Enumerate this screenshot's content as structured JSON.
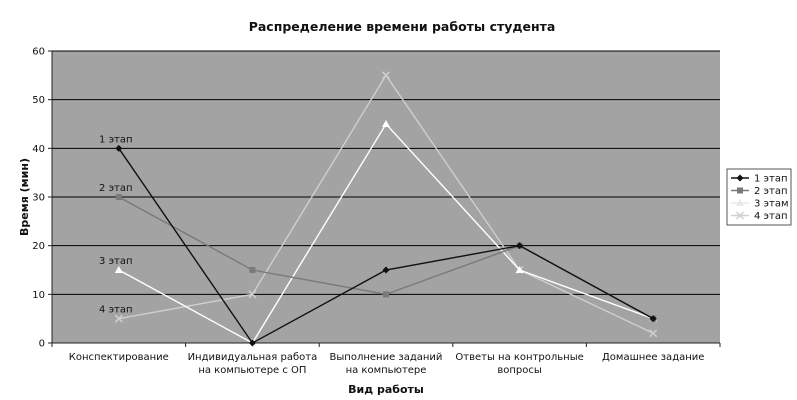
{
  "chart_data": {
    "type": "line",
    "title": "Распределение времени работы студента",
    "xlabel": "Вид работы",
    "ylabel": "Время (мин)",
    "ylim": [
      0,
      60
    ],
    "yticks": [
      0,
      10,
      20,
      30,
      40,
      50,
      60
    ],
    "grid": true,
    "legend_position": "right",
    "categories": [
      [
        "Конспектирование"
      ],
      [
        "Индивидуальная работа",
        "на компьютере с ОП"
      ],
      [
        "Выполнение заданий",
        "на компьютере"
      ],
      [
        "Ответы на контрольные",
        "вопросы"
      ],
      [
        "Домашнее задание"
      ]
    ],
    "series": [
      {
        "name": "1 этап",
        "values": [
          40,
          0,
          15,
          20,
          5
        ],
        "color": "#111111",
        "marker": "diamond"
      },
      {
        "name": "2 этап",
        "values": [
          30,
          15,
          10,
          20,
          5
        ],
        "color": "#7a7a7a",
        "marker": "square"
      },
      {
        "name": "3 этам",
        "values": [
          15,
          0,
          45,
          15,
          5
        ],
        "color": "#ffffff",
        "marker": "triangle"
      },
      {
        "name": "4 этап",
        "values": [
          5,
          10,
          55,
          15,
          2
        ],
        "color": "#cfcfcf",
        "marker": "cross"
      }
    ],
    "annotations": [
      {
        "text": "1 этап"
      },
      {
        "text": "2 этап"
      },
      {
        "text": "3 этап"
      },
      {
        "text": "4 этап"
      }
    ],
    "colors": {
      "plot_background": "#a3a3a3",
      "gridline": "#000000"
    }
  }
}
